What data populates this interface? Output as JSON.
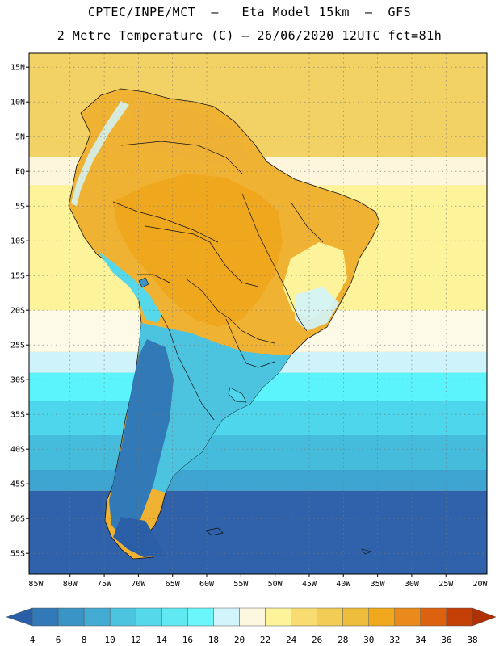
{
  "header": {
    "line1": "CPTEC/INPE/MCT  –   Eta Model 15km  –  GFS",
    "line2": "2 Metre Temperature (C) – 26/06/2020 12UTC fct=81h"
  },
  "map": {
    "lon_range": [
      -86,
      -19
    ],
    "lat_range": [
      -58,
      17
    ],
    "lat_ticks": [
      {
        "value": 15,
        "label": "15N"
      },
      {
        "value": 10,
        "label": "10N"
      },
      {
        "value": 5,
        "label": "5N"
      },
      {
        "value": 0,
        "label": "EQ"
      },
      {
        "value": -5,
        "label": "5S"
      },
      {
        "value": -10,
        "label": "10S"
      },
      {
        "value": -15,
        "label": "15S"
      },
      {
        "value": -20,
        "label": "20S"
      },
      {
        "value": -25,
        "label": "25S"
      },
      {
        "value": -30,
        "label": "30S"
      },
      {
        "value": -35,
        "label": "35S"
      },
      {
        "value": -40,
        "label": "40S"
      },
      {
        "value": -45,
        "label": "45S"
      },
      {
        "value": -50,
        "label": "50S"
      },
      {
        "value": -55,
        "label": "55S"
      }
    ],
    "lon_ticks": [
      {
        "value": -85,
        "label": "85W"
      },
      {
        "value": -80,
        "label": "80W"
      },
      {
        "value": -75,
        "label": "75W"
      },
      {
        "value": -70,
        "label": "70W"
      },
      {
        "value": -65,
        "label": "65W"
      },
      {
        "value": -60,
        "label": "60W"
      },
      {
        "value": -55,
        "label": "55W"
      },
      {
        "value": -50,
        "label": "50W"
      },
      {
        "value": -45,
        "label": "45W"
      },
      {
        "value": -40,
        "label": "40W"
      },
      {
        "value": -35,
        "label": "35W"
      },
      {
        "value": -30,
        "label": "30W"
      },
      {
        "value": -25,
        "label": "25W"
      },
      {
        "value": -20,
        "label": "20W"
      }
    ],
    "ocean_bands": [
      {
        "lat_top": 17,
        "lat_bottom": 2,
        "color": "#f2d265"
      },
      {
        "lat_top": 2,
        "lat_bottom": -2,
        "color": "#fdf6dc"
      },
      {
        "lat_top": -2,
        "lat_bottom": -20,
        "color": "#fdf39a"
      },
      {
        "lat_top": -20,
        "lat_bottom": -26,
        "color": "#fdfbe8"
      },
      {
        "lat_top": -26,
        "lat_bottom": -29,
        "color": "#cff3fb"
      },
      {
        "lat_top": -29,
        "lat_bottom": -33,
        "color": "#5cf4fc"
      },
      {
        "lat_top": -33,
        "lat_bottom": -38,
        "color": "#4dd6ec"
      },
      {
        "lat_top": -38,
        "lat_bottom": -43,
        "color": "#46bcdc"
      },
      {
        "lat_top": -43,
        "lat_bottom": -46,
        "color": "#3ea5d2"
      },
      {
        "lat_top": -46,
        "lat_bottom": -58,
        "color": "#2f62aa"
      }
    ]
  },
  "colorbar": {
    "levels": [
      "4",
      "6",
      "8",
      "10",
      "12",
      "14",
      "16",
      "18",
      "20",
      "22",
      "24",
      "26",
      "28",
      "30",
      "32",
      "34",
      "36",
      "38"
    ],
    "colors": [
      "#2a5ea6",
      "#3279b8",
      "#3a94c6",
      "#44acd3",
      "#4cc4e0",
      "#55d8ea",
      "#60e8f3",
      "#6af6fb",
      "#d2f4fb",
      "#fdf7df",
      "#fdf39a",
      "#f8dc72",
      "#f2cc55",
      "#eebd3c",
      "#f0a81c",
      "#ea8a1c",
      "#dd6210",
      "#c43f06",
      "#b03004"
    ]
  }
}
